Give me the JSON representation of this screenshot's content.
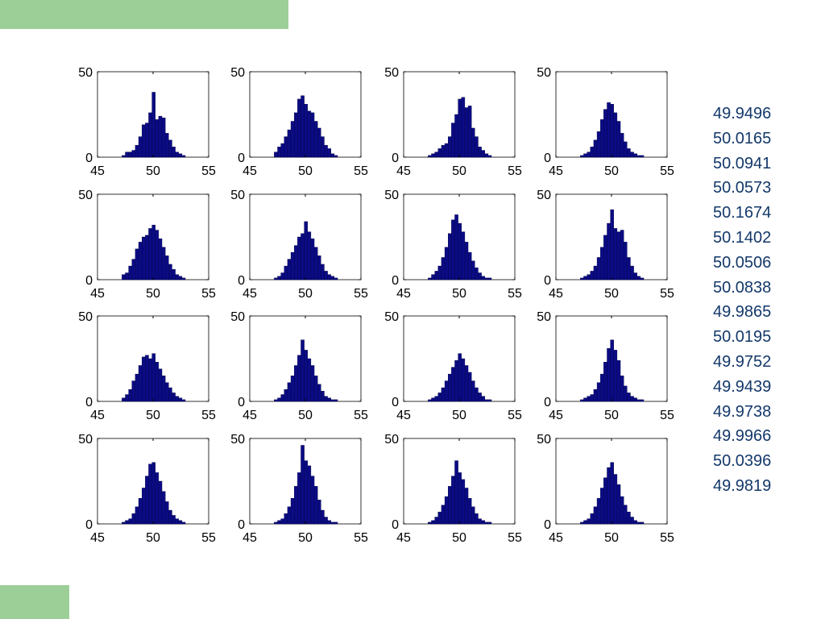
{
  "colors": {
    "accent_band": "#9ccf98",
    "bar_fill": "#0b0b84",
    "bar_edge": "#000044",
    "means_text": "#13386a",
    "axis": "#000000"
  },
  "means": [
    "49.9496",
    "50.0165",
    "50.0941",
    "50.0573",
    "50.1674",
    "50.1402",
    "50.0506",
    "50.0838",
    "49.9865",
    "50.0195",
    "49.9752",
    "49.9439",
    "49.9738",
    "49.9966",
    "50.0396",
    "49.9819"
  ],
  "chart_data": [
    {
      "type": "bar",
      "xlim": [
        45,
        55
      ],
      "ylim": [
        0,
        50
      ],
      "xticks": [
        "45",
        "50",
        "55"
      ],
      "yticks": [
        "0",
        "50"
      ],
      "x": [
        47.2,
        47.5,
        47.8,
        48.1,
        48.4,
        48.7,
        49.0,
        49.3,
        49.6,
        49.9,
        50.2,
        50.5,
        50.8,
        51.1,
        51.4,
        51.7,
        52.0,
        52.3,
        52.6
      ],
      "values": [
        1,
        3,
        3,
        4,
        7,
        12,
        19,
        20,
        26,
        38,
        22,
        24,
        23,
        14,
        10,
        6,
        3,
        2,
        1
      ]
    },
    {
      "type": "bar",
      "xlim": [
        45,
        55
      ],
      "ylim": [
        0,
        50
      ],
      "xticks": [
        "45",
        "50",
        "55"
      ],
      "yticks": [
        "0",
        "50"
      ],
      "x": [
        47.2,
        47.5,
        47.8,
        48.1,
        48.4,
        48.7,
        49.0,
        49.3,
        49.6,
        49.9,
        50.2,
        50.5,
        50.8,
        51.1,
        51.4,
        51.7,
        52.0,
        52.3,
        52.6
      ],
      "values": [
        3,
        6,
        8,
        12,
        16,
        21,
        26,
        34,
        36,
        31,
        27,
        26,
        21,
        17,
        12,
        7,
        5,
        2,
        1
      ]
    },
    {
      "type": "bar",
      "xlim": [
        45,
        55
      ],
      "ylim": [
        0,
        50
      ],
      "xticks": [
        "45",
        "50",
        "55"
      ],
      "yticks": [
        "0",
        "50"
      ],
      "x": [
        47.2,
        47.5,
        47.8,
        48.1,
        48.4,
        48.7,
        49.0,
        49.3,
        49.6,
        49.9,
        50.2,
        50.5,
        50.8,
        51.1,
        51.4,
        51.7,
        52.0,
        52.3,
        52.6
      ],
      "values": [
        1,
        2,
        3,
        5,
        7,
        8,
        12,
        20,
        25,
        34,
        35,
        29,
        30,
        17,
        12,
        6,
        4,
        2,
        1
      ]
    },
    {
      "type": "bar",
      "xlim": [
        45,
        55
      ],
      "ylim": [
        0,
        50
      ],
      "xticks": [
        "45",
        "50",
        "55"
      ],
      "yticks": [
        "0",
        "50"
      ],
      "x": [
        47.2,
        47.5,
        47.8,
        48.1,
        48.4,
        48.7,
        49.0,
        49.3,
        49.6,
        49.9,
        50.2,
        50.5,
        50.8,
        51.1,
        51.4,
        51.7,
        52.0,
        52.3,
        52.6
      ],
      "values": [
        1,
        2,
        3,
        6,
        10,
        15,
        22,
        28,
        32,
        31,
        26,
        21,
        14,
        9,
        5,
        3,
        2,
        1,
        1
      ]
    },
    {
      "type": "bar",
      "xlim": [
        45,
        55
      ],
      "ylim": [
        0,
        50
      ],
      "xticks": [
        "45",
        "50",
        "55"
      ],
      "yticks": [
        "0",
        "50"
      ],
      "x": [
        47.2,
        47.5,
        47.8,
        48.1,
        48.4,
        48.7,
        49.0,
        49.3,
        49.6,
        49.9,
        50.2,
        50.5,
        50.8,
        51.1,
        51.4,
        51.7,
        52.0,
        52.3,
        52.6
      ],
      "values": [
        3,
        4,
        8,
        12,
        18,
        22,
        25,
        26,
        30,
        32,
        29,
        24,
        19,
        14,
        9,
        6,
        3,
        2,
        1
      ]
    },
    {
      "type": "bar",
      "xlim": [
        45,
        55
      ],
      "ylim": [
        0,
        50
      ],
      "xticks": [
        "45",
        "50",
        "55"
      ],
      "yticks": [
        "0",
        "50"
      ],
      "x": [
        47.2,
        47.5,
        47.8,
        48.1,
        48.4,
        48.7,
        49.0,
        49.3,
        49.6,
        49.9,
        50.2,
        50.5,
        50.8,
        51.1,
        51.4,
        51.7,
        52.0,
        52.3,
        52.6
      ],
      "values": [
        1,
        2,
        4,
        8,
        12,
        16,
        20,
        25,
        27,
        34,
        28,
        24,
        19,
        14,
        9,
        5,
        3,
        2,
        1
      ]
    },
    {
      "type": "bar",
      "xlim": [
        45,
        55
      ],
      "ylim": [
        0,
        50
      ],
      "xticks": [
        "45",
        "50",
        "55"
      ],
      "yticks": [
        "0",
        "50"
      ],
      "x": [
        47.2,
        47.5,
        47.8,
        48.1,
        48.4,
        48.7,
        49.0,
        49.3,
        49.6,
        49.9,
        50.2,
        50.5,
        50.8,
        51.1,
        51.4,
        51.7,
        52.0,
        52.3,
        52.6
      ],
      "values": [
        1,
        3,
        5,
        8,
        13,
        19,
        27,
        35,
        38,
        33,
        28,
        22,
        16,
        11,
        7,
        4,
        2,
        1,
        1
      ]
    },
    {
      "type": "bar",
      "xlim": [
        45,
        55
      ],
      "ylim": [
        0,
        50
      ],
      "xticks": [
        "45",
        "50",
        "55"
      ],
      "yticks": [
        "0",
        "50"
      ],
      "x": [
        47.2,
        47.5,
        47.8,
        48.1,
        48.4,
        48.7,
        49.0,
        49.3,
        49.6,
        49.9,
        50.2,
        50.5,
        50.8,
        51.1,
        51.4,
        51.7,
        52.0,
        52.3,
        52.6
      ],
      "values": [
        1,
        2,
        3,
        5,
        8,
        13,
        19,
        26,
        33,
        41,
        30,
        28,
        29,
        22,
        13,
        8,
        4,
        2,
        1
      ]
    },
    {
      "type": "bar",
      "xlim": [
        45,
        55
      ],
      "ylim": [
        0,
        50
      ],
      "xticks": [
        "45",
        "50",
        "55"
      ],
      "yticks": [
        "0",
        "50"
      ],
      "x": [
        47.2,
        47.5,
        47.8,
        48.1,
        48.4,
        48.7,
        49.0,
        49.3,
        49.6,
        49.9,
        50.2,
        50.5,
        50.8,
        51.1,
        51.4,
        51.7,
        52.0,
        52.3,
        52.6
      ],
      "values": [
        2,
        4,
        7,
        12,
        16,
        21,
        26,
        27,
        25,
        28,
        23,
        19,
        15,
        11,
        8,
        5,
        3,
        2,
        1
      ]
    },
    {
      "type": "bar",
      "xlim": [
        45,
        55
      ],
      "ylim": [
        0,
        50
      ],
      "xticks": [
        "45",
        "50",
        "55"
      ],
      "yticks": [
        "0",
        "50"
      ],
      "x": [
        47.2,
        47.5,
        47.8,
        48.1,
        48.4,
        48.7,
        49.0,
        49.3,
        49.6,
        49.9,
        50.2,
        50.5,
        50.8,
        51.1,
        51.4,
        51.7,
        52.0,
        52.3,
        52.6
      ],
      "values": [
        1,
        2,
        4,
        7,
        11,
        15,
        21,
        27,
        36,
        30,
        25,
        21,
        15,
        10,
        6,
        3,
        2,
        1,
        1
      ]
    },
    {
      "type": "bar",
      "xlim": [
        45,
        55
      ],
      "ylim": [
        0,
        50
      ],
      "xticks": [
        "45",
        "50",
        "55"
      ],
      "yticks": [
        "0",
        "50"
      ],
      "x": [
        47.2,
        47.5,
        47.8,
        48.1,
        48.4,
        48.7,
        49.0,
        49.3,
        49.6,
        49.9,
        50.2,
        50.5,
        50.8,
        51.1,
        51.4,
        51.7,
        52.0,
        52.3,
        52.6
      ],
      "values": [
        1,
        2,
        3,
        5,
        8,
        12,
        16,
        20,
        24,
        28,
        25,
        21,
        17,
        12,
        8,
        5,
        3,
        1,
        1
      ]
    },
    {
      "type": "bar",
      "xlim": [
        45,
        55
      ],
      "ylim": [
        0,
        50
      ],
      "xticks": [
        "45",
        "50",
        "55"
      ],
      "yticks": [
        "0",
        "50"
      ],
      "x": [
        47.2,
        47.5,
        47.8,
        48.1,
        48.4,
        48.7,
        49.0,
        49.3,
        49.6,
        49.9,
        50.2,
        50.5,
        50.8,
        51.1,
        51.4,
        51.7,
        52.0,
        52.3,
        52.6
      ],
      "values": [
        1,
        2,
        3,
        4,
        7,
        11,
        16,
        23,
        31,
        36,
        30,
        24,
        15,
        9,
        5,
        3,
        2,
        1,
        1
      ]
    },
    {
      "type": "bar",
      "xlim": [
        45,
        55
      ],
      "ylim": [
        0,
        50
      ],
      "xticks": [
        "45",
        "50",
        "55"
      ],
      "yticks": [
        "0",
        "50"
      ],
      "x": [
        47.2,
        47.5,
        47.8,
        48.1,
        48.4,
        48.7,
        49.0,
        49.3,
        49.6,
        49.9,
        50.2,
        50.5,
        50.8,
        51.1,
        51.4,
        51.7,
        52.0,
        52.3,
        52.6
      ],
      "values": [
        1,
        2,
        3,
        6,
        10,
        15,
        21,
        28,
        35,
        36,
        30,
        25,
        19,
        13,
        8,
        5,
        3,
        2,
        1
      ]
    },
    {
      "type": "bar",
      "xlim": [
        45,
        55
      ],
      "ylim": [
        0,
        50
      ],
      "xticks": [
        "45",
        "50",
        "55"
      ],
      "yticks": [
        "0",
        "50"
      ],
      "x": [
        47.2,
        47.5,
        47.8,
        48.1,
        48.4,
        48.7,
        49.0,
        49.3,
        49.6,
        49.9,
        50.2,
        50.5,
        50.8,
        51.1,
        51.4,
        51.7,
        52.0,
        52.3,
        52.6
      ],
      "values": [
        1,
        2,
        3,
        6,
        10,
        15,
        22,
        30,
        46,
        37,
        34,
        28,
        22,
        14,
        8,
        4,
        2,
        1,
        1
      ]
    },
    {
      "type": "bar",
      "xlim": [
        45,
        55
      ],
      "ylim": [
        0,
        50
      ],
      "xticks": [
        "45",
        "50",
        "55"
      ],
      "yticks": [
        "0",
        "50"
      ],
      "x": [
        47.2,
        47.5,
        47.8,
        48.1,
        48.4,
        48.7,
        49.0,
        49.3,
        49.6,
        49.9,
        50.2,
        50.5,
        50.8,
        51.1,
        51.4,
        51.7,
        52.0,
        52.3,
        52.6
      ],
      "values": [
        1,
        2,
        4,
        7,
        11,
        16,
        22,
        28,
        37,
        30,
        26,
        21,
        15,
        10,
        6,
        3,
        2,
        1,
        1
      ]
    },
    {
      "type": "bar",
      "xlim": [
        45,
        55
      ],
      "ylim": [
        0,
        50
      ],
      "xticks": [
        "45",
        "50",
        "55"
      ],
      "yticks": [
        "0",
        "50"
      ],
      "x": [
        47.2,
        47.5,
        47.8,
        48.1,
        48.4,
        48.7,
        49.0,
        49.3,
        49.6,
        49.9,
        50.2,
        50.5,
        50.8,
        51.1,
        51.4,
        51.7,
        52.0,
        52.3,
        52.6
      ],
      "values": [
        1,
        2,
        3,
        6,
        10,
        15,
        21,
        27,
        33,
        36,
        29,
        23,
        16,
        11,
        7,
        4,
        2,
        1,
        1
      ]
    }
  ]
}
